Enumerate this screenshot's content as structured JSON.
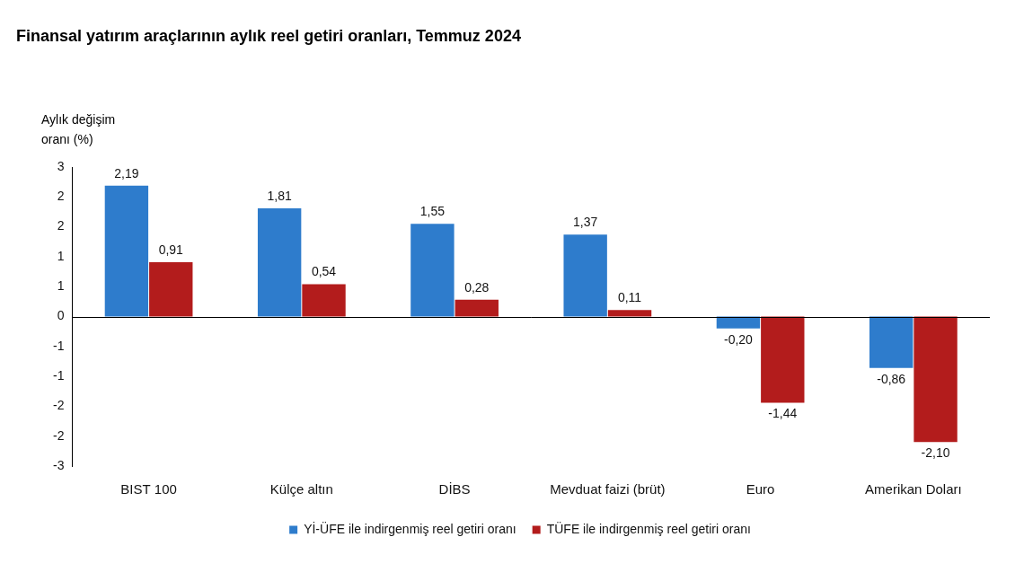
{
  "chart_data": {
    "type": "bar",
    "title": "Finansal yatırım araçlarının aylık reel getiri oranları, Temmuz 2024",
    "y_label": "Aylık değişim oranı (%)",
    "categories": [
      "BIST 100",
      "Külçe altın",
      "DİBS",
      "Mevduat faizi (brüt)",
      "Euro",
      "Amerikan Doları"
    ],
    "series": [
      {
        "name": "Yİ-ÜFE ile indirgenmiş reel getiri oranı",
        "color": "#2e7ccc",
        "values": [
          2.19,
          1.81,
          1.55,
          1.37,
          -0.2,
          -0.86
        ],
        "value_labels": [
          "2,19",
          "1,81",
          "1,55",
          "1,37",
          "-0,20",
          "-0,86"
        ]
      },
      {
        "name": "TÜFE ile indirgenmiş reel getiri oranı",
        "color": "#b31c1c",
        "values": [
          0.91,
          0.54,
          0.28,
          0.11,
          -1.44,
          -2.1
        ],
        "value_labels": [
          "0,91",
          "0,54",
          "0,28",
          "0,11",
          "-1,44",
          "-2,10"
        ]
      }
    ],
    "ylim": [
      -2.5,
      2.5
    ],
    "yticks": [
      {
        "value": -2.5,
        "label": "-3"
      },
      {
        "value": -2,
        "label": "-2"
      },
      {
        "value": -1.5,
        "label": "-2"
      },
      {
        "value": -1,
        "label": "-1"
      },
      {
        "value": -0.5,
        "label": "-1"
      },
      0,
      {
        "value": 0.5,
        "label": "1"
      },
      {
        "value": 1,
        "label": "1"
      },
      {
        "value": 1.5,
        "label": "2"
      },
      {
        "value": 2,
        "label": "2"
      },
      {
        "value": 2.5,
        "label": "3"
      }
    ],
    "grid": false,
    "legend": "bottom",
    "data_labels": true
  }
}
